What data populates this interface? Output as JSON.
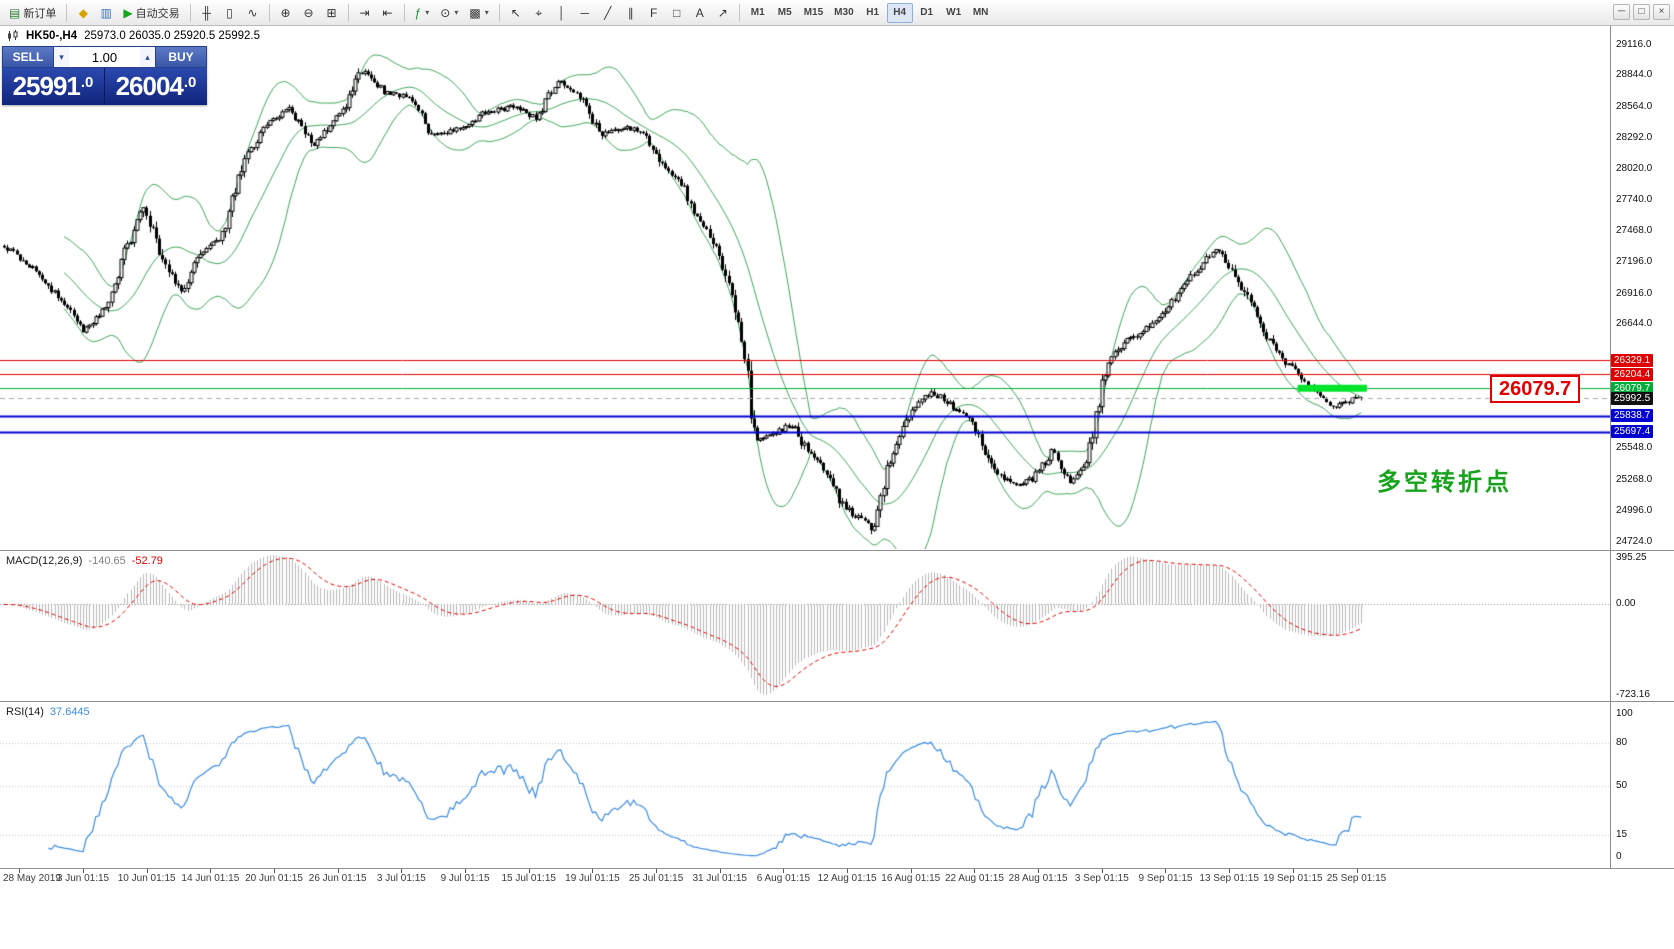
{
  "window": {
    "controls": [
      {
        "name": "minimize-button",
        "glyph": "─"
      },
      {
        "name": "restore-button",
        "glyph": "□"
      },
      {
        "name": "close-button",
        "glyph": "×"
      }
    ]
  },
  "toolbar": {
    "groups": [
      {
        "name": "trade",
        "items": [
          {
            "name": "new-order-button",
            "glyph": "▤",
            "glyph_color": "#2f7d32",
            "label": "新订单"
          }
        ]
      },
      {
        "name": "panels",
        "items": [
          {
            "name": "symbols-button",
            "glyph": "◆",
            "glyph_color": "#d7a300"
          },
          {
            "name": "market-depth-button",
            "glyph": "▥",
            "glyph_color": "#3a6fbe"
          },
          {
            "name": "autotrading-button",
            "glyph": "▶",
            "glyph_color": "#17a31c",
            "label": "自动交易"
          }
        ]
      },
      {
        "name": "chart-type",
        "items": [
          {
            "name": "bar-chart-button",
            "glyph": "╫"
          },
          {
            "name": "candlestick-chart-button",
            "glyph": "▯"
          },
          {
            "name": "line-chart-button",
            "glyph": "∿"
          }
        ]
      },
      {
        "name": "zoom",
        "items": [
          {
            "name": "zoom-in-button",
            "glyph": "⊕"
          },
          {
            "name": "zoom-out-button",
            "glyph": "⊖"
          },
          {
            "name": "tile-windows-button",
            "glyph": "⊞"
          }
        ]
      },
      {
        "name": "scroll",
        "items": [
          {
            "name": "auto-scroll-button",
            "glyph": "⇥"
          },
          {
            "name": "chart-shift-button",
            "glyph": "⇤"
          }
        ]
      },
      {
        "name": "insert",
        "items": [
          {
            "name": "indicators-button",
            "glyph": "ƒ",
            "glyph_color": "#1e8e3e",
            "caret": true
          },
          {
            "name": "periods-button",
            "glyph": "⊙",
            "caret": true
          },
          {
            "name": "templates-button",
            "glyph": "▩",
            "caret": true
          }
        ]
      },
      {
        "name": "draw",
        "items": [
          {
            "name": "cursor-button",
            "glyph": "↖"
          },
          {
            "name": "crosshair-button",
            "glyph": "⌖"
          },
          {
            "name": "vertical-line-button",
            "glyph": "│"
          },
          {
            "name": "horizontal-line-button",
            "glyph": "─"
          },
          {
            "name": "trendline-button",
            "glyph": "╱"
          },
          {
            "name": "channel-button",
            "glyph": "∥"
          },
          {
            "name": "fibonacci-button",
            "glyph": "F"
          },
          {
            "name": "shapes-button",
            "glyph": "□"
          },
          {
            "name": "text-button",
            "glyph": "A"
          },
          {
            "name": "arrows-button",
            "glyph": "↗"
          }
        ]
      },
      {
        "name": "timeframes",
        "items": [
          {
            "name": "timeframe-m1",
            "label": "M1"
          },
          {
            "name": "timeframe-m5",
            "label": "M5"
          },
          {
            "name": "timeframe-m15",
            "label": "M15"
          },
          {
            "name": "timeframe-m30",
            "label": "M30"
          },
          {
            "name": "timeframe-h1",
            "label": "H1"
          },
          {
            "name": "timeframe-h4",
            "label": "H4",
            "active": true
          },
          {
            "name": "timeframe-d1",
            "label": "D1"
          },
          {
            "name": "timeframe-w1",
            "label": "W1"
          },
          {
            "name": "timeframe-mn",
            "label": "MN"
          }
        ]
      }
    ]
  },
  "chart": {
    "symbol_label": "HK50-,H4",
    "ohlc_label": "25973.0 26035.0 25920.5 25992.5",
    "annotation": "多空转折点",
    "big_price_label": "26079.7"
  },
  "trade_panel": {
    "sell_label": "SELL",
    "buy_label": "BUY",
    "volume": "1.00",
    "volume_down_glyph": "▾",
    "volume_up_glyph": "▴",
    "sell_price_int": "25991",
    "sell_price_dec": ".0",
    "buy_price_int": "26004",
    "buy_price_dec": ".0"
  },
  "macd_panel": {
    "name_label": "MACD(12,26,9)",
    "main_value": "-140.65",
    "signal_value": "-52.79",
    "axis": [
      "395.25",
      "0.00",
      "-723.16"
    ]
  },
  "rsi_panel": {
    "name_label": "RSI(14)",
    "value": "37.6445",
    "axis": [
      "100",
      "80",
      "50",
      "15",
      "0"
    ]
  },
  "chart_data": {
    "type": "candlestick",
    "symbol": "HK50-",
    "timeframe": "H4",
    "visible_range": {
      "start": "28 May 2019",
      "end": "25 Sep 2019"
    },
    "last_ohlc": {
      "open": 25973.0,
      "high": 26035.0,
      "low": 25920.5,
      "close": 25992.5
    },
    "bid": 25991.0,
    "ask": 26004.0,
    "price_range_shown": [
      24660,
      29280
    ],
    "price_axis_ticks": [
      29116.0,
      28844.0,
      28564.0,
      28292.0,
      28020.0,
      27740.0,
      27468.0,
      27196.0,
      26916.0,
      26644.0,
      25548.0,
      25268.0,
      24996.0,
      24724.0
    ],
    "levels": [
      {
        "label": "26329.1",
        "price": 26329.1,
        "line_color": "#e00000",
        "tag_color": "#e00000",
        "width": 1,
        "dash": false
      },
      {
        "label": "26204.4",
        "price": 26204.4,
        "line_color": "#e00000",
        "tag_color": "#e00000",
        "width": 1,
        "dash": false
      },
      {
        "label": "26079.7",
        "price": 26079.7,
        "line_color": "#00ad39",
        "tag_color": "#00ad39",
        "width": 1,
        "dash": false
      },
      {
        "label": "25992.5",
        "price": 25992.5,
        "line_color": "#aaaaaa",
        "tag_color": "#111111",
        "width": 1,
        "dash": true
      },
      {
        "label": "25838.7",
        "price": 25838.7,
        "line_color": "#0000d2",
        "tag_color": "#0000d2",
        "width": 2,
        "dash": false
      },
      {
        "label": "25697.4",
        "price": 25697.4,
        "line_color": "#0000d2",
        "tag_color": "#0000d2",
        "width": 2,
        "dash": false
      }
    ],
    "highlight_segment": {
      "price": 26079.7,
      "x_from": 0.806,
      "x_to": 0.849,
      "color": "#00e42c",
      "width": 7
    },
    "bollinger": {
      "period": 20,
      "deviation": 2,
      "color": "#3fa45c"
    },
    "macd": {
      "fast": 12,
      "slow": 26,
      "signal": 9,
      "histogram_color": "#b9b9b9",
      "signal_color": "#e00000",
      "axis_max": 395.25,
      "axis_min": -723.16
    },
    "rsi": {
      "period": 14,
      "color": "#3c8ce0",
      "levels": [
        80,
        50,
        15
      ]
    },
    "time_labels": [
      "28 May 2019",
      "3 Jun 01:15",
      "10 Jun 01:15",
      "14 Jun 01:15",
      "20 Jun 01:15",
      "26 Jun 01:15",
      "3 Jul 01:15",
      "9 Jul 01:15",
      "15 Jul 01:15",
      "19 Jul 01:15",
      "25 Jul 01:15",
      "31 Jul 01:15",
      "6 Aug 01:15",
      "12 Aug 01:15",
      "16 Aug 01:15",
      "22 Aug 01:15",
      "28 Aug 01:15",
      "3 Sep 01:15",
      "9 Sep 01:15",
      "13 Sep 01:15",
      "19 Sep 01:15",
      "25 Sep 01:15"
    ],
    "candles_rendered": 430,
    "spike_low": {
      "f": 0.638,
      "price": 24790
    },
    "price_anchors": [
      [
        0.0,
        27340
      ],
      [
        0.02,
        27150
      ],
      [
        0.048,
        26780
      ],
      [
        0.058,
        26600
      ],
      [
        0.075,
        26780
      ],
      [
        0.09,
        27320
      ],
      [
        0.103,
        27690
      ],
      [
        0.118,
        27180
      ],
      [
        0.13,
        26920
      ],
      [
        0.145,
        27290
      ],
      [
        0.16,
        27420
      ],
      [
        0.178,
        28120
      ],
      [
        0.195,
        28440
      ],
      [
        0.21,
        28540
      ],
      [
        0.228,
        28240
      ],
      [
        0.248,
        28500
      ],
      [
        0.263,
        28880
      ],
      [
        0.28,
        28700
      ],
      [
        0.3,
        28640
      ],
      [
        0.315,
        28310
      ],
      [
        0.333,
        28360
      ],
      [
        0.352,
        28500
      ],
      [
        0.375,
        28570
      ],
      [
        0.392,
        28470
      ],
      [
        0.408,
        28800
      ],
      [
        0.425,
        28640
      ],
      [
        0.44,
        28310
      ],
      [
        0.455,
        28390
      ],
      [
        0.47,
        28340
      ],
      [
        0.483,
        28060
      ],
      [
        0.497,
        27930
      ],
      [
        0.512,
        27560
      ],
      [
        0.527,
        27280
      ],
      [
        0.537,
        26840
      ],
      [
        0.545,
        26420
      ],
      [
        0.553,
        25620
      ],
      [
        0.568,
        25680
      ],
      [
        0.58,
        25760
      ],
      [
        0.592,
        25520
      ],
      [
        0.605,
        25340
      ],
      [
        0.618,
        25040
      ],
      [
        0.63,
        24920
      ],
      [
        0.64,
        24840
      ],
      [
        0.652,
        25420
      ],
      [
        0.668,
        25900
      ],
      [
        0.683,
        26060
      ],
      [
        0.698,
        25930
      ],
      [
        0.713,
        25780
      ],
      [
        0.728,
        25360
      ],
      [
        0.743,
        25220
      ],
      [
        0.758,
        25280
      ],
      [
        0.772,
        25520
      ],
      [
        0.785,
        25250
      ],
      [
        0.798,
        25430
      ],
      [
        0.81,
        26220
      ],
      [
        0.824,
        26480
      ],
      [
        0.838,
        26580
      ],
      [
        0.853,
        26720
      ],
      [
        0.868,
        26980
      ],
      [
        0.882,
        27160
      ],
      [
        0.893,
        27320
      ],
      [
        0.904,
        27140
      ],
      [
        0.916,
        26880
      ],
      [
        0.93,
        26520
      ],
      [
        0.944,
        26310
      ],
      [
        0.956,
        26160
      ],
      [
        0.968,
        26040
      ],
      [
        0.978,
        25910
      ],
      [
        0.988,
        25960
      ],
      [
        1.0,
        25992.5
      ]
    ]
  }
}
